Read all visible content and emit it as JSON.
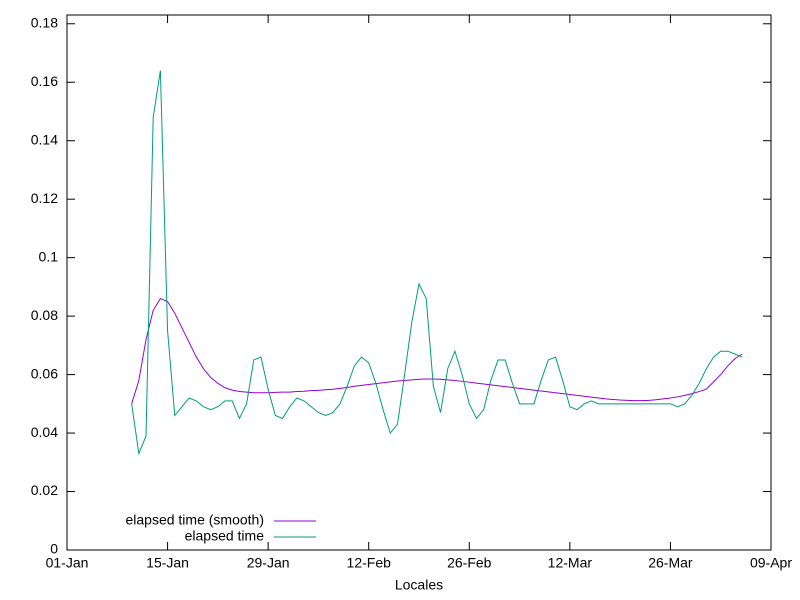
{
  "chart_data": {
    "type": "line",
    "xlabel": "Locales",
    "x": [
      "10-Jan",
      "11-Jan",
      "12-Jan",
      "13-Jan",
      "14-Jan",
      "15-Jan",
      "16-Jan",
      "17-Jan",
      "18-Jan",
      "19-Jan",
      "20-Jan",
      "21-Jan",
      "22-Jan",
      "23-Jan",
      "24-Jan",
      "25-Jan",
      "26-Jan",
      "27-Jan",
      "28-Jan",
      "29-Jan",
      "30-Jan",
      "31-Jan",
      "01-Feb",
      "02-Feb",
      "03-Feb",
      "04-Feb",
      "05-Feb",
      "06-Feb",
      "07-Feb",
      "08-Feb",
      "09-Feb",
      "10-Feb",
      "11-Feb",
      "12-Feb",
      "13-Feb",
      "14-Feb",
      "15-Feb",
      "16-Feb",
      "17-Feb",
      "18-Feb",
      "19-Feb",
      "20-Feb",
      "21-Feb",
      "22-Feb",
      "23-Feb",
      "24-Feb",
      "25-Feb",
      "26-Feb",
      "27-Feb",
      "28-Feb",
      "01-Mar",
      "02-Mar",
      "03-Mar",
      "04-Mar",
      "05-Mar",
      "06-Mar",
      "07-Mar",
      "08-Mar",
      "09-Mar",
      "10-Mar",
      "11-Mar",
      "12-Mar",
      "13-Mar",
      "14-Mar",
      "15-Mar",
      "16-Mar",
      "17-Mar",
      "18-Mar",
      "19-Mar",
      "20-Mar",
      "21-Mar",
      "22-Mar",
      "23-Mar",
      "24-Mar",
      "25-Mar",
      "26-Mar",
      "27-Mar",
      "28-Mar",
      "29-Mar",
      "30-Mar",
      "31-Mar",
      "01-Apr",
      "02-Apr",
      "03-Apr",
      "04-Apr",
      "05-Apr"
    ],
    "series": [
      {
        "name": "elapsed time (smooth)",
        "color": "#9400d3",
        "values": [
          0.05,
          0.058,
          0.072,
          0.082,
          0.086,
          0.085,
          0.081,
          0.076,
          0.071,
          0.066,
          0.062,
          0.059,
          0.057,
          0.0555,
          0.0547,
          0.0542,
          0.054,
          0.0538,
          0.0538,
          0.0538,
          0.0539,
          0.054,
          0.054,
          0.0542,
          0.0543,
          0.0545,
          0.0546,
          0.0548,
          0.055,
          0.0553,
          0.0556,
          0.056,
          0.0563,
          0.0566,
          0.0569,
          0.0572,
          0.0575,
          0.0578,
          0.058,
          0.0582,
          0.0584,
          0.0585,
          0.0585,
          0.0584,
          0.0582,
          0.058,
          0.0577,
          0.0574,
          0.0571,
          0.0568,
          0.0565,
          0.0562,
          0.0559,
          0.0556,
          0.0553,
          0.055,
          0.0547,
          0.0544,
          0.0541,
          0.0538,
          0.0535,
          0.0532,
          0.0529,
          0.0526,
          0.0523,
          0.052,
          0.0517,
          0.0515,
          0.0513,
          0.0512,
          0.0511,
          0.0511,
          0.0512,
          0.0514,
          0.0517,
          0.052,
          0.0524,
          0.0529,
          0.0535,
          0.0542,
          0.055,
          0.0575,
          0.06,
          0.063,
          0.0655,
          0.067
        ]
      },
      {
        "name": "elapsed time",
        "color": "#009e73",
        "values": [
          0.05,
          0.033,
          0.039,
          0.148,
          0.164,
          0.075,
          0.046,
          0.049,
          0.052,
          0.051,
          0.049,
          0.048,
          0.049,
          0.051,
          0.051,
          0.045,
          0.05,
          0.065,
          0.066,
          0.055,
          0.046,
          0.045,
          0.049,
          0.052,
          0.051,
          0.049,
          0.047,
          0.046,
          0.047,
          0.05,
          0.056,
          0.063,
          0.066,
          0.064,
          0.057,
          0.048,
          0.04,
          0.043,
          0.06,
          0.078,
          0.091,
          0.086,
          0.056,
          0.047,
          0.062,
          0.068,
          0.06,
          0.05,
          0.045,
          0.048,
          0.058,
          0.065,
          0.065,
          0.057,
          0.05,
          0.05,
          0.05,
          0.058,
          0.065,
          0.066,
          0.058,
          0.049,
          0.048,
          0.05,
          0.051,
          0.05,
          0.05,
          0.05,
          0.05,
          0.05,
          0.05,
          0.05,
          0.05,
          0.05,
          0.05,
          0.05,
          0.049,
          0.05,
          0.053,
          0.057,
          0.062,
          0.066,
          0.068,
          0.068,
          0.067,
          0.066
        ]
      }
    ],
    "xlim": [
      "01-Jan",
      "09-Apr"
    ],
    "xticks": [
      "01-Jan",
      "15-Jan",
      "29-Jan",
      "12-Feb",
      "26-Feb",
      "12-Mar",
      "26-Mar",
      "09-Apr"
    ],
    "ylim": [
      0,
      0.183
    ],
    "yticks": [
      0,
      0.02,
      0.04,
      0.06,
      0.08,
      0.1,
      0.12,
      0.14,
      0.16,
      0.18
    ],
    "legend": "lower left"
  }
}
